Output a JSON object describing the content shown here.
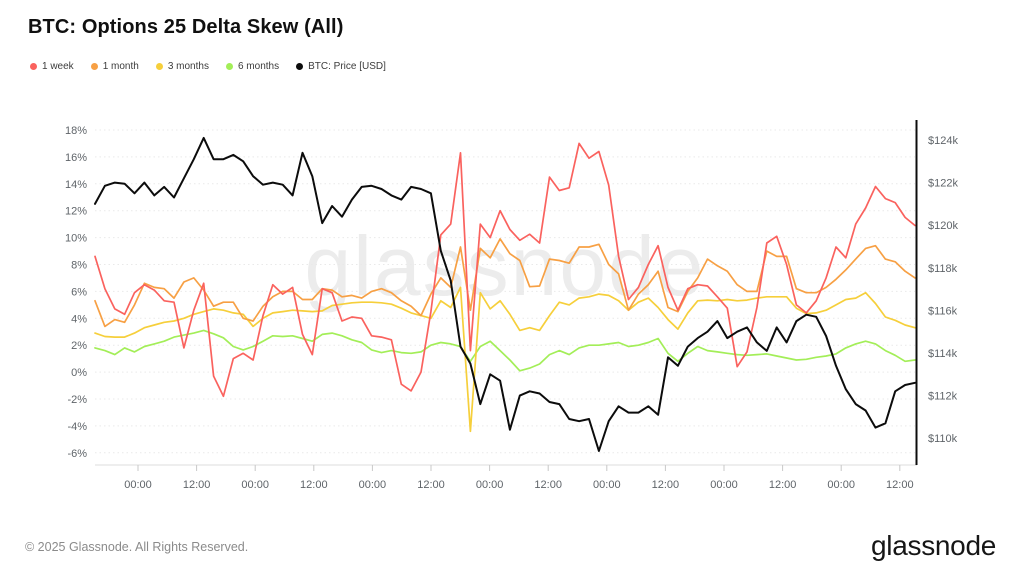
{
  "title": "BTC: Options 25 Delta Skew (All)",
  "watermark": "glassnode",
  "footer": {
    "copyright": "© 2025 Glassnode. All Rights Reserved.",
    "logo_text": "glassnode"
  },
  "colors": {
    "one_week": "#fa625e",
    "one_month": "#f7a044",
    "three_months": "#f6cf3b",
    "six_months": "#a3ee58",
    "price": "#0c0c0c",
    "grid": "#e9e9e9",
    "axis_line": "#dcdcdc",
    "tick_mark": "#c8c8c8",
    "axis_text": "#5f6469",
    "right_axis_line": "#0c0c0c"
  },
  "legend": [
    {
      "label": "1 week",
      "color": "#fa625e"
    },
    {
      "label": "1 month",
      "color": "#f7a044"
    },
    {
      "label": "3 months",
      "color": "#f6cf3b"
    },
    {
      "label": "6 months",
      "color": "#a3ee58"
    },
    {
      "label": "BTC: Price [USD]",
      "color": "#0c0c0c"
    }
  ],
  "chart_data": {
    "type": "line",
    "title": "BTC: Options 25 Delta Skew (All)",
    "grid": true,
    "legend_position": "top-left",
    "x_axis": {
      "tick_labels": [
        "00:00",
        "12:00",
        "00:00",
        "12:00",
        "00:00",
        "12:00",
        "00:00",
        "12:00",
        "00:00",
        "12:00",
        "00:00",
        "12:00",
        "00:00",
        "12:00"
      ]
    },
    "y_axis_left": {
      "unit": "%",
      "range": [
        -7,
        19
      ],
      "tick_values": [
        18,
        16,
        14,
        12,
        10,
        8,
        6,
        4,
        2,
        0,
        -2,
        -4,
        -6
      ],
      "tick_labels": [
        "18%",
        "16%",
        "14%",
        "12%",
        "10%",
        "8%",
        "6%",
        "4%",
        "2%",
        "0%",
        "-2%",
        "-4%",
        "-6%"
      ]
    },
    "y_axis_right": {
      "unit": "USD",
      "range_k": [
        109,
        125
      ],
      "tick_values_k": [
        124,
        122,
        120,
        118,
        116,
        114,
        112,
        110
      ],
      "tick_labels": [
        "$124k",
        "$122k",
        "$120k",
        "$118k",
        "$116k",
        "$114k",
        "$112k",
        "$110k"
      ]
    },
    "series": [
      {
        "name": "1 week",
        "axis": "left",
        "color": "#fa625e",
        "values": [
          8.6,
          6.2,
          4.7,
          4.3,
          5.9,
          6.5,
          6.1,
          5.3,
          5.2,
          1.8,
          4.6,
          6.6,
          -0.3,
          -1.8,
          1.0,
          1.4,
          0.9,
          4.2,
          6.5,
          5.8,
          6.3,
          2.8,
          1.3,
          6.2,
          5.9,
          3.8,
          4.1,
          4.0,
          2.7,
          2.6,
          2.4,
          -0.9,
          -1.4,
          0.0,
          4.5,
          10.2,
          11.0,
          16.3,
          1.6,
          11.0,
          10.0,
          12.0,
          10.6,
          9.8,
          10.25,
          9.6,
          14.5,
          13.5,
          13.7,
          17.0,
          15.9,
          16.4,
          13.9,
          8.6,
          5.4,
          6.3,
          8.0,
          9.4,
          6.3,
          4.6,
          6.2,
          6.5,
          6.4,
          5.6,
          4.75,
          0.4,
          1.5,
          4.8,
          9.6,
          10.1,
          8.0,
          5.0,
          4.4,
          5.3,
          7.0,
          9.3,
          8.5,
          11.0,
          12.2,
          13.8,
          12.9,
          12.6,
          11.5,
          10.9
        ]
      },
      {
        "name": "1 month",
        "axis": "left",
        "color": "#f7a044",
        "values": [
          5.3,
          3.4,
          3.9,
          3.7,
          5.0,
          6.6,
          6.3,
          6.2,
          5.5,
          6.7,
          7.0,
          6.1,
          4.9,
          5.2,
          5.2,
          4.0,
          3.8,
          4.9,
          5.6,
          6.0,
          6.0,
          5.4,
          5.4,
          6.2,
          6.1,
          5.6,
          5.7,
          5.5,
          6.0,
          6.2,
          5.9,
          5.3,
          4.9,
          4.2,
          5.8,
          7.0,
          6.3,
          9.3,
          4.6,
          9.2,
          8.5,
          9.9,
          8.8,
          8.3,
          6.35,
          6.4,
          8.4,
          8.3,
          8.1,
          9.3,
          9.3,
          9.5,
          8.0,
          7.3,
          4.6,
          5.8,
          6.5,
          7.5,
          4.8,
          4.5,
          6.0,
          7.0,
          8.4,
          7.9,
          7.5,
          6.5,
          6.0,
          6.0,
          9.0,
          8.6,
          8.6,
          6.2,
          5.9,
          5.9,
          6.3,
          6.9,
          7.6,
          8.4,
          9.2,
          9.4,
          8.4,
          8.2,
          7.5,
          7.0
        ]
      },
      {
        "name": "3 months",
        "axis": "left",
        "color": "#f6cf3b",
        "values": [
          2.9,
          2.65,
          2.6,
          2.6,
          2.9,
          3.3,
          3.5,
          3.7,
          3.8,
          4.0,
          4.3,
          4.5,
          4.7,
          4.6,
          4.4,
          4.3,
          3.4,
          4.0,
          4.4,
          4.5,
          4.6,
          4.55,
          4.5,
          4.55,
          4.95,
          5.05,
          5.15,
          5.2,
          5.2,
          5.15,
          5.05,
          4.75,
          4.4,
          4.2,
          4.0,
          5.3,
          4.8,
          6.3,
          -4.4,
          5.9,
          4.7,
          5.3,
          4.3,
          3.1,
          3.3,
          3.1,
          4.2,
          5.2,
          5.0,
          5.5,
          5.6,
          5.8,
          5.7,
          5.3,
          4.6,
          5.2,
          5.5,
          4.8,
          3.9,
          3.2,
          4.4,
          5.3,
          5.35,
          5.3,
          5.4,
          5.3,
          5.35,
          5.5,
          5.6,
          5.6,
          5.6,
          4.75,
          4.35,
          4.4,
          4.6,
          5.0,
          5.4,
          5.5,
          5.9,
          5.1,
          4.1,
          3.85,
          3.5,
          3.3
        ]
      },
      {
        "name": "6 months",
        "axis": "left",
        "color": "#a3ee58",
        "values": [
          1.8,
          1.6,
          1.3,
          1.8,
          1.5,
          1.9,
          2.1,
          2.3,
          2.6,
          2.75,
          2.9,
          3.1,
          2.85,
          2.55,
          1.9,
          1.65,
          1.9,
          2.3,
          2.7,
          2.65,
          2.7,
          2.5,
          2.3,
          2.8,
          2.9,
          2.7,
          2.4,
          2.2,
          1.65,
          1.45,
          1.6,
          1.45,
          1.4,
          1.5,
          2.0,
          2.2,
          2.1,
          1.9,
          0.8,
          1.9,
          2.3,
          1.6,
          0.9,
          0.1,
          0.3,
          0.6,
          1.3,
          1.6,
          1.3,
          1.8,
          2.0,
          2.0,
          2.1,
          2.2,
          1.9,
          2.0,
          2.2,
          2.5,
          1.4,
          0.8,
          1.4,
          1.9,
          1.6,
          1.5,
          1.4,
          1.3,
          1.25,
          1.3,
          1.35,
          1.2,
          1.05,
          0.9,
          0.95,
          1.1,
          1.2,
          1.35,
          1.8,
          2.1,
          2.3,
          2.1,
          1.6,
          1.25,
          0.8,
          0.9
        ]
      },
      {
        "name": "BTC: Price [USD]",
        "axis": "right",
        "color": "#0c0c0c",
        "values": [
          121.0,
          121.85,
          122.0,
          121.95,
          121.5,
          122.0,
          121.4,
          121.8,
          121.3,
          122.2,
          123.1,
          124.1,
          123.1,
          123.1,
          123.3,
          123.0,
          122.3,
          121.9,
          122.0,
          121.9,
          121.4,
          123.4,
          122.3,
          120.1,
          120.9,
          120.4,
          121.2,
          121.8,
          121.85,
          121.7,
          121.4,
          121.2,
          121.8,
          121.7,
          121.5,
          118.8,
          117.4,
          114.3,
          113.5,
          111.6,
          113.0,
          112.7,
          110.4,
          112.0,
          112.2,
          112.1,
          111.7,
          111.6,
          110.9,
          110.8,
          110.9,
          109.4,
          110.8,
          111.5,
          111.2,
          111.2,
          111.5,
          111.1,
          113.8,
          113.4,
          114.3,
          114.7,
          115.0,
          115.5,
          114.7,
          115.0,
          115.2,
          114.5,
          114.1,
          115.2,
          114.5,
          115.5,
          115.8,
          115.7,
          114.8,
          113.4,
          112.3,
          111.6,
          111.3,
          110.5,
          110.7,
          112.2,
          112.5,
          112.6
        ]
      }
    ]
  }
}
